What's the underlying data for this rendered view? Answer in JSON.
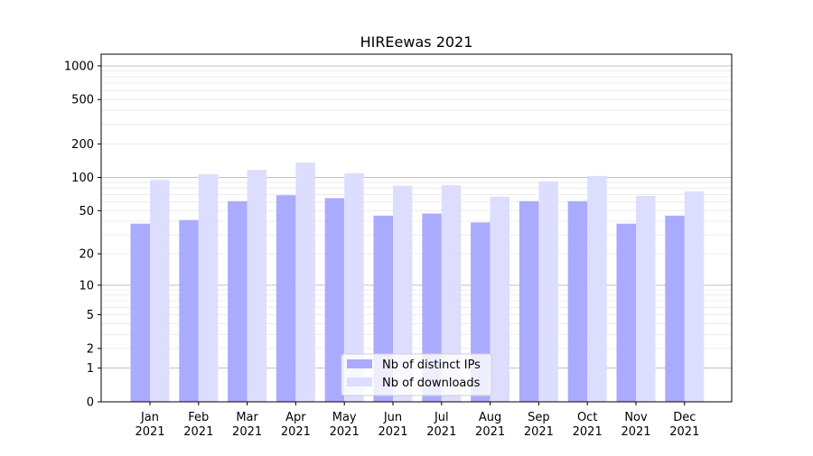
{
  "chart_data": {
    "type": "bar",
    "title": "HIREewas 2021",
    "xlabel": "",
    "ylabel": "",
    "yscale": "symlog (log10(1+y))",
    "ylim": [
      0,
      1300
    ],
    "yticks": [
      0,
      1,
      2,
      5,
      10,
      20,
      50,
      100,
      200,
      500,
      1000
    ],
    "grid": true,
    "legend_position": "bottom-center",
    "categories": [
      "Jan\n2021",
      "Feb\n2021",
      "Mar\n2021",
      "Apr\n2021",
      "May\n2021",
      "Jun\n2021",
      "Jul\n2021",
      "Aug\n2021",
      "Sep\n2021",
      "Oct\n2021",
      "Nov\n2021",
      "Dec\n2021"
    ],
    "series": [
      {
        "name": "Nb of distinct IPs",
        "color": "#aaaaff",
        "values": [
          38,
          41,
          61,
          69,
          65,
          45,
          47,
          39,
          61,
          61,
          38,
          45
        ]
      },
      {
        "name": "Nb of downloads",
        "color": "#ddddff",
        "values": [
          95,
          107,
          117,
          136,
          109,
          84,
          85,
          67,
          92,
          103,
          68,
          75
        ]
      }
    ]
  }
}
